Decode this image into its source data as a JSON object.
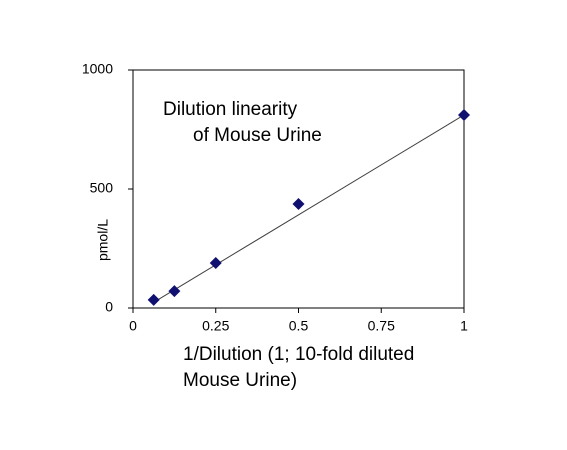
{
  "chart_data": {
    "type": "scatter",
    "title": [
      "Dilution linearity",
      "of Mouse Urine"
    ],
    "x_label": [
      "1/Dilution (1; 10-fold diluted",
      "Mouse Urine)"
    ],
    "y_label": "pmol/L",
    "series": [
      {
        "name": "Mouse Urine",
        "color": "#101070",
        "x": [
          0.0625,
          0.125,
          0.25,
          0.5,
          1
        ],
        "values": [
          34,
          71,
          189,
          437,
          811
        ]
      }
    ],
    "trendline": {
      "color": "#404040",
      "x": [
        0.0625,
        1
      ],
      "values": [
        24,
        811
      ]
    },
    "xlim": [
      0,
      1
    ],
    "xticks": [
      0,
      0.25,
      0.5,
      0.75,
      1
    ],
    "ylim": [
      0,
      1000
    ],
    "yticks": [
      0,
      500,
      1000
    ],
    "grid": false
  }
}
